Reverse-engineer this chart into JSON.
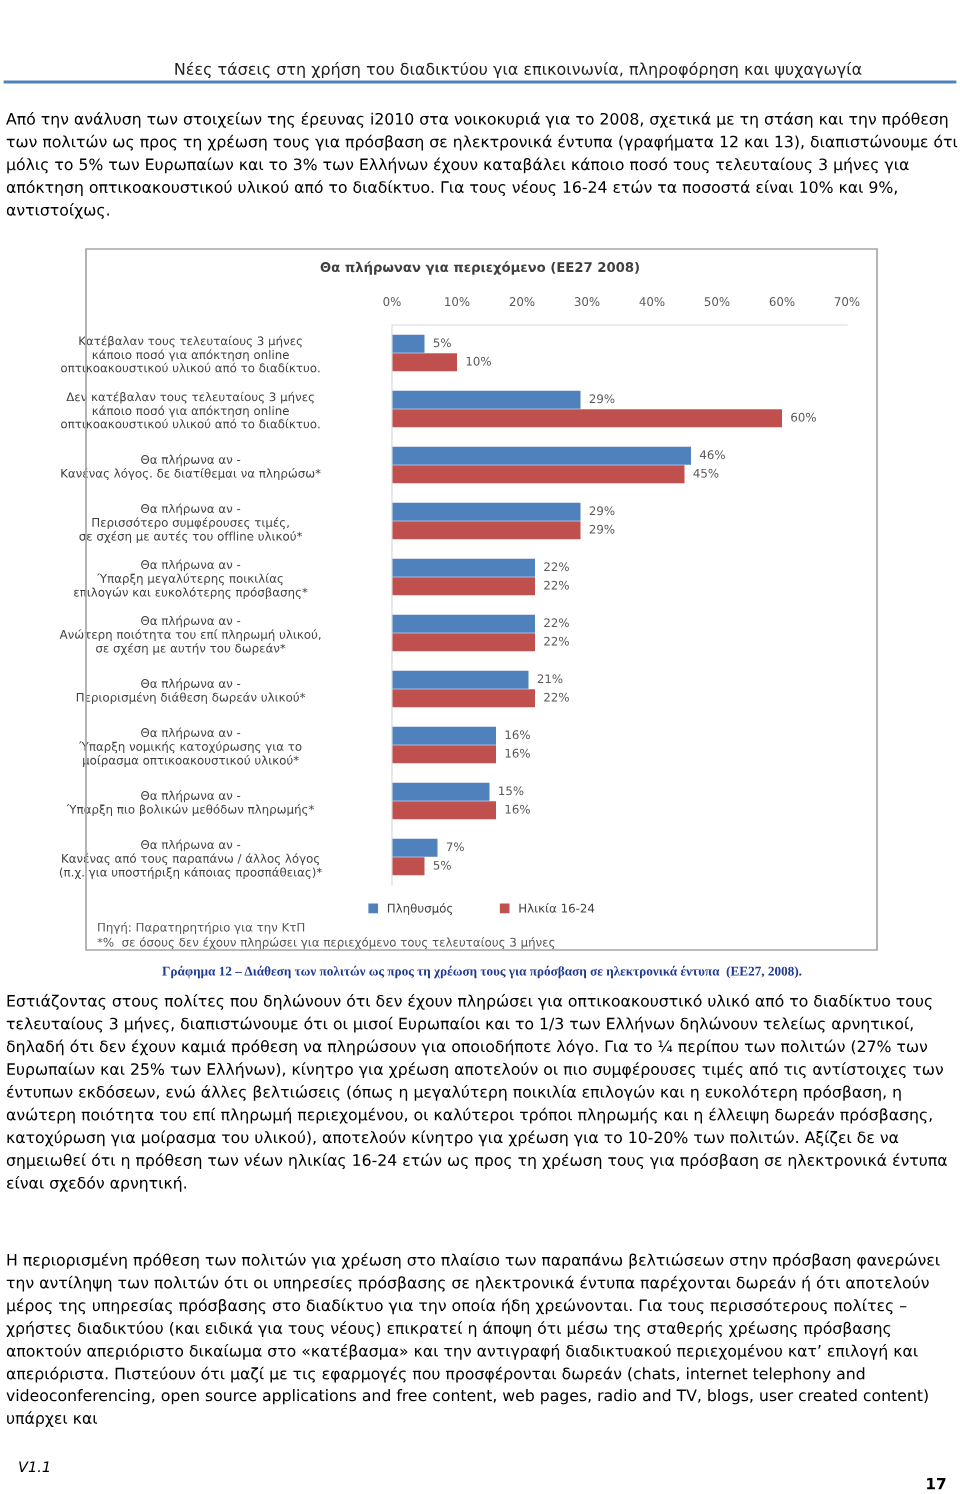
{
  "chart_data": {
    "type": "bar",
    "orientation": "horizontal",
    "title": "Θα πλήρωναν για περιεχόμενο (ΕΕ27 2008)",
    "categories": [
      "Κατέβαλαν τους τελευταίους 3 μήνες\nκάποιο ποσό για απόκτηση online\nοπτικοακουστικού υλικού από το διαδίκτυο.",
      "Δεν κατέβαλαν τους τελευταίους 3 μήνες\nκάποιο ποσό για απόκτηση online\nοπτικοακουστικού υλικού από το διαδίκτυο.",
      "Θα πλήρωνα αν -\nΚανένας λόγος. δε διατίθεμαι να πληρώσω*",
      "Θα πλήρωνα αν -\nΠερισσότερο συμφέρουσες τιμές,\nσε σχέση με αυτές του offline υλικού*",
      "Θα πλήρωνα αν -\nΎπαρξη μεγαλύτερης ποικιλίας\nεπιλογών και ευκολότερης πρόσβασης*",
      "Θα πλήρωνα αν -\nΑνώτερη ποιότητα του επί πληρωμή υλικού,\nσε σχέση με αυτήν του δωρεάν*",
      "Θα πλήρωνα αν -\nΠεριορισμένη διάθεση δωρεάν υλικού*",
      "Θα πλήρωνα αν -\nΎπαρξη νομικής κατοχύρωσης για το\nμοίρασμα οπτικοακουστικού υλικού*",
      "Θα πλήρωνα αν -\nΎπαρξη πιο βολικών μεθόδων πληρωμής*",
      "Θα πλήρωνα αν -\nΚανένας από τους παραπάνω / άλλος λόγος\n(π.χ. για υποστήριξη κάποιας προσπάθειας)*"
    ],
    "series": [
      {
        "name": "Πληθυσμός",
        "color": "#4f81bd",
        "values": [
          5,
          29,
          46,
          29,
          22,
          22,
          21,
          16,
          15,
          7
        ],
        "value_labels": [
          "5%",
          "29%",
          "46%",
          "29%",
          "22%",
          "22%",
          "21%",
          "16%",
          "15%",
          "7%"
        ]
      },
      {
        "name": "Ηλικία 16-24",
        "color": "#c0504d",
        "values": [
          10,
          60,
          45,
          29,
          22,
          22,
          22,
          16,
          16,
          5
        ],
        "value_labels": [
          "10%",
          "60%",
          "45%",
          "29%",
          "22%",
          "22%",
          "22%",
          "16%",
          "16%",
          "5%"
        ]
      }
    ],
    "xlim": [
      0,
      70
    ],
    "xticks": [
      {
        "value": 0,
        "label": "0%"
      },
      {
        "value": 10,
        "label": "10%"
      },
      {
        "value": 20,
        "label": "20%"
      },
      {
        "value": 30,
        "label": "30%"
      },
      {
        "value": 40,
        "label": "40%"
      },
      {
        "value": 50,
        "label": "50%"
      },
      {
        "value": 60,
        "label": "60%"
      },
      {
        "value": 70,
        "label": "70%"
      }
    ],
    "grid": false,
    "legend": "bottom",
    "annotations": [
      "Νέες τάσεις στη χρήση του διαδικτύου για επικοινωνία, πληροφόρηση και ψυχαγωγία",
      "Από την ανάλυση των στοιχείων της έρευνας i2010 στα νοικοκυριά για το 2008, σχετικά με τη στάση και την πρόθεση των πολιτών ως προς τη χρέωση τους για πρόσβαση σε ηλεκτρονικά έντυπα (γραφήματα 12 και 13), διαπιστώνουμε ότι μόλις το 5% των Ευρωπαίων και το 3% των Ελλήνων έχουν καταβάλει κάποιο ποσό τους τελευταίους 3 μήνες για απόκτηση οπτικοακουστικού υλικού από το διαδίκτυο. Για τους νέους 16-24 ετών τα ποσοστά είναι 10% και 9%, αντιστοίχως.",
      "Πηγή: Παρατηρητήριο για την ΚτΠ",
      "*%  σε όσους δεν έχουν πληρώσει για περιεχόμενο τους τελευταίους 3 μήνες",
      "Γράφημα 12 – Διάθεση των πολιτών ως προς τη χρέωση τους για πρόσβαση σε ηλεκτρονικά έντυπα  (ΕΕ27, 2008).",
      "Εστιάζοντας στους πολίτες που δηλώνουν ότι δεν έχουν πληρώσει για οπτικοακουστικό υλικό από το διαδίκτυο τους τελευταίους 3 μήνες, διαπιστώνουμε ότι οι μισοί Ευρωπαίοι και το 1/3 των Ελλήνων δηλώνουν τελείως αρνητικοί, δηλαδή ότι δεν έχουν καμιά πρόθεση να πληρώσουν για οποιοδήποτε λόγο. Για το ¼ περίπου των πολιτών (27% των Ευρωπαίων και 25% των Ελλήνων), κίνητρο για χρέωση αποτελούν οι πιο συμφέρουσες τιμές από τις αντίστοιχες των έντυπων εκδόσεων, ενώ άλλες βελτιώσεις (όπως η μεγαλύτερη ποικιλία επιλογών και η ευκολότερη πρόσβαση, η ανώτερη ποιότητα του επί πληρωμή περιεχομένου, οι καλύτεροι τρόποι πληρωμής και η έλλειψη δωρεάν πρόσβασης, κατοχύρωση για μοίρασμα του υλικού), αποτελούν κίνητρο για χρέωση για το 10-20% των πολιτών. Αξίζει δε να σημειωθεί ότι η πρόθεση των νέων ηλικίας 16-24 ετών ως προς τη χρέωση τους για πρόσβαση σε ηλεκτρονικά έντυπα είναι σχεδόν αρνητική.",
      "Η περιορισμένη πρόθεση των πολιτών για χρέωση στο πλαίσιο των παραπάνω βελτιώσεων στην πρόσβαση φανερώνει την αντίληψη των πολιτών ότι οι υπηρεσίες πρόσβασης σε ηλεκτρονικά έντυπα παρέχονται δωρεάν ή ότι αποτελούν μέρος της υπηρεσίας πρόσβασης στο διαδίκτυο για την οποία ήδη χρεώνονται. Για τους περισσότερους πολίτες – χρήστες διαδικτύου (και ειδικά για τους νέους) επικρατεί η άποψη ότι μέσω της σταθερής χρέωσης πρόσβασης αποκτούν απεριόριστο δικαίωμα στο «κατέβασμα» και την αντιγραφή διαδικτυακού περιεχομένου κατ’ επιλογή και απεριόριστα. Πιστεύουν ότι μαζί με τις εφαρμογές που προσφέρονται δωρεάν (chats, internet telephony and videoconferencing, open source applications and free content, web pages, radio and TV, blogs, user created content) υπάρχει και",
      "V1.1",
      "17"
    ]
  }
}
